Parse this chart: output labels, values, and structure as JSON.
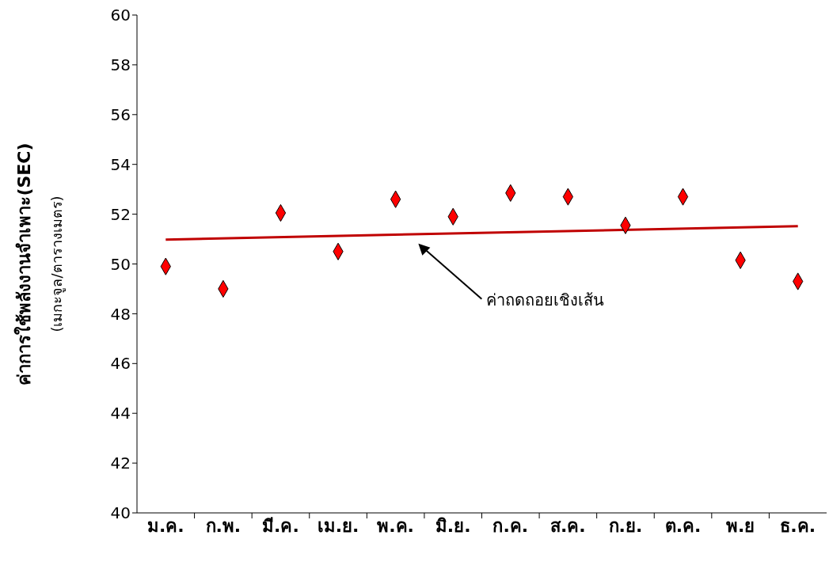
{
  "chart_data": {
    "type": "scatter",
    "ylabel": "ค่าการใช้พลังงานจำเพาะ(SEC)\n(เมกะจูล/ตารางเมตร)",
    "categories": [
      "ม.ค.",
      "ก.พ.",
      "มี.ค.",
      "เม.ย.",
      "พ.ค.",
      "มิ.ย.",
      "ก.ค.",
      "ส.ค.",
      "ก.ย.",
      "ต.ค.",
      "พ.ย",
      "ธ.ค."
    ],
    "series": [
      {
        "color": "#ff0000",
        "marker": "diamond",
        "values": [
          49.9,
          49.0,
          52.05,
          50.5,
          52.6,
          51.9,
          52.85,
          52.7,
          51.55,
          52.7,
          50.15,
          49.3
        ]
      },
      {
        "type": "line",
        "color": "#c00000",
        "x": [
          "ม.ค.",
          "ธ.ค."
        ],
        "values": [
          50.98,
          51.52
        ]
      }
    ],
    "ylim": [
      40,
      60
    ],
    "yticks": [
      40,
      42,
      44,
      46,
      48,
      50,
      52,
      54,
      56,
      58,
      60
    ],
    "grid": false,
    "legend": false,
    "annotations": [
      "ค่าถดถอยเชิงเส้น"
    ]
  }
}
